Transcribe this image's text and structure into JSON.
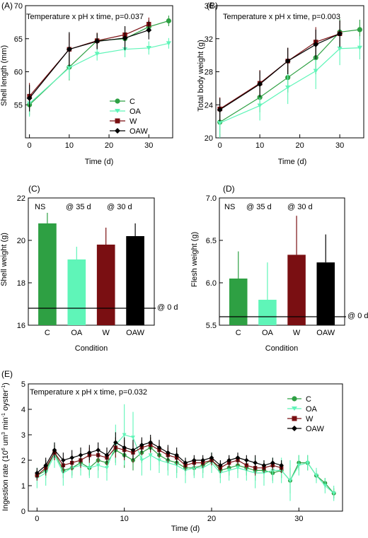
{
  "colors": {
    "C": "#2ea043",
    "OA": "#5ff5b8",
    "W": "#7a0f12",
    "OAW": "#000000"
  },
  "chart_data": [
    {
      "panel": "(A)",
      "type": "line",
      "annotation": "Temperature x pH x time, p=0.037",
      "xlabel": "Time (d)",
      "ylabel": "Shell length (mm)",
      "xlim": [
        -1,
        36
      ],
      "ylim": [
        50,
        70
      ],
      "xticks": [
        "0",
        "10",
        "20",
        "30"
      ],
      "yticks": [
        "55",
        "60",
        "65",
        "70"
      ],
      "legend": [
        "C",
        "OA",
        "W",
        "OAW"
      ],
      "legend_position": "bottom-right",
      "series": [
        {
          "name": "C",
          "x": [
            0,
            10,
            17,
            24,
            30,
            35
          ],
          "y": [
            55.0,
            60.7,
            64.7,
            65.0,
            66.8,
            67.7
          ],
          "err": [
            1.6,
            2.0,
            1.2,
            1.2,
            1.0,
            0.8
          ]
        },
        {
          "name": "OA",
          "x": [
            0,
            10,
            17,
            24,
            30,
            35
          ],
          "y": [
            55.2,
            60.6,
            62.7,
            63.4,
            63.6,
            64.3
          ],
          "err": [
            2.0,
            1.8,
            1.0,
            1.2,
            1.0,
            0.8
          ]
        },
        {
          "name": "W",
          "x": [
            0,
            10,
            17,
            24,
            30
          ],
          "y": [
            56.3,
            63.4,
            64.7,
            65.6,
            67.2
          ],
          "err": [
            2.0,
            2.4,
            1.2,
            1.2,
            1.0
          ]
        },
        {
          "name": "OAW",
          "x": [
            0,
            10,
            17,
            24,
            30
          ],
          "y": [
            56.0,
            63.4,
            64.6,
            65.1,
            66.3
          ],
          "err": [
            2.0,
            2.6,
            1.2,
            1.8,
            1.4
          ]
        }
      ]
    },
    {
      "panel": "(B)",
      "type": "line",
      "annotation": "Temperature x pH x time, p=0.003",
      "xlabel": "Time (d)",
      "ylabel": "Total body weight (g)",
      "xlim": [
        -1,
        36
      ],
      "ylim": [
        20,
        36
      ],
      "xticks": [
        "0",
        "10",
        "20",
        "30"
      ],
      "yticks": [
        "20",
        "24",
        "28",
        "32",
        "36"
      ],
      "series": [
        {
          "name": "C",
          "x": [
            0,
            10,
            17,
            24,
            30,
            35
          ],
          "y": [
            21.9,
            24.9,
            27.3,
            29.7,
            32.8,
            33.1
          ],
          "err": [
            1.5,
            1.8,
            1.8,
            2.0,
            1.6,
            1.2
          ]
        },
        {
          "name": "OA",
          "x": [
            0,
            10,
            17,
            24,
            30,
            35
          ],
          "y": [
            21.8,
            23.9,
            26.1,
            28.1,
            30.8,
            30.9
          ],
          "err": [
            1.8,
            1.8,
            2.0,
            2.2,
            2.0,
            1.4
          ]
        },
        {
          "name": "W",
          "x": [
            0,
            10,
            17,
            24,
            30
          ],
          "y": [
            23.5,
            26.6,
            29.3,
            31.6,
            32.6
          ],
          "err": [
            1.4,
            1.6,
            1.6,
            1.8,
            1.6
          ]
        },
        {
          "name": "OAW",
          "x": [
            0,
            10,
            17,
            24,
            30
          ],
          "y": [
            23.4,
            26.5,
            29.3,
            31.3,
            32.6
          ],
          "err": [
            1.4,
            1.6,
            1.6,
            1.8,
            1.6
          ]
        }
      ]
    },
    {
      "panel": "(C)",
      "type": "bar",
      "xlabel": "Condition",
      "ylabel": "Shell weight (g)",
      "ylim": [
        16,
        22
      ],
      "yticks": [
        "16",
        "18",
        "20",
        "22"
      ],
      "categories": [
        "C",
        "OA",
        "W",
        "OAW"
      ],
      "values": [
        20.8,
        19.1,
        19.8,
        20.2
      ],
      "err": [
        0.5,
        0.6,
        0.8,
        0.6
      ],
      "baseline": 16.8,
      "baseline_label": "@ 0 d",
      "annotations": [
        "NS",
        "@ 35 d",
        "@ 30 d"
      ]
    },
    {
      "panel": "(D)",
      "type": "bar",
      "xlabel": "Condition",
      "ylabel": "Flesh weight (g)",
      "ylim": [
        5.5,
        7.0
      ],
      "yticks": [
        "5.5",
        "6.0",
        "6.5",
        "7.0"
      ],
      "categories": [
        "C",
        "OA",
        "W",
        "OAW"
      ],
      "values": [
        6.05,
        5.8,
        6.33,
        6.24
      ],
      "err": [
        0.32,
        0.44,
        0.46,
        0.33
      ],
      "baseline": 5.6,
      "baseline_label": "@ 0 d",
      "annotations": [
        "NS",
        "@ 35 d",
        "@ 30 d"
      ]
    },
    {
      "panel": "(E)",
      "type": "line",
      "annotation": "Temperature x pH x time, p=0.032",
      "xlabel": "Time (d)",
      "ylabel": "Ingestion rate (10^6 um^3 min^-1 oyster^-1)",
      "xlim": [
        -1,
        35
      ],
      "ylim": [
        0,
        5
      ],
      "xticks": [
        "0",
        "10",
        "20",
        "30"
      ],
      "yticks": [
        "0",
        "1",
        "2",
        "3",
        "4",
        "5"
      ],
      "legend": [
        "C",
        "OA",
        "W",
        "OAW"
      ],
      "legend_position": "top-right",
      "series": [
        {
          "name": "C",
          "x": [
            0,
            1,
            2,
            3,
            4,
            5,
            6,
            7,
            8,
            9,
            10,
            11,
            12,
            13,
            14,
            15,
            16,
            17,
            18,
            19,
            20,
            21,
            22,
            23,
            24,
            25,
            26,
            27,
            28,
            29,
            30,
            31,
            32,
            33,
            34
          ],
          "y": [
            1.4,
            1.6,
            2.3,
            1.6,
            1.7,
            1.9,
            1.7,
            2.0,
            1.9,
            2.4,
            2.2,
            2.0,
            2.3,
            2.5,
            2.2,
            2.0,
            1.9,
            1.7,
            1.7,
            1.8,
            2.0,
            1.6,
            1.7,
            1.8,
            1.7,
            1.6,
            1.6,
            1.5,
            1.6,
            1.2,
            1.9,
            1.9,
            1.4,
            1.1,
            0.7
          ],
          "err": [
            0.2,
            0.3,
            0.3,
            0.3,
            0.3,
            0.3,
            0.3,
            0.4,
            0.4,
            0.5,
            0.5,
            0.4,
            0.4,
            0.4,
            0.4,
            0.4,
            0.4,
            0.3,
            0.3,
            0.3,
            0.3,
            0.3,
            0.3,
            0.3,
            0.3,
            0.4,
            0.3,
            0.3,
            0.3,
            0.5,
            0.3,
            0.3,
            0.2,
            0.2,
            0.2
          ]
        },
        {
          "name": "OA",
          "x": [
            0,
            1,
            2,
            3,
            4,
            5,
            6,
            7,
            8,
            9,
            10,
            11,
            12,
            13,
            14,
            15,
            16,
            17,
            18,
            19,
            20,
            21,
            22,
            23,
            24,
            25,
            26,
            27,
            28,
            29,
            30,
            31,
            32,
            33,
            34
          ],
          "y": [
            1.3,
            1.5,
            2.2,
            1.5,
            1.7,
            1.8,
            1.7,
            1.8,
            1.7,
            2.6,
            3.0,
            2.9,
            2.0,
            2.2,
            2.0,
            1.9,
            1.8,
            1.6,
            1.7,
            1.7,
            1.9,
            1.5,
            1.6,
            1.7,
            1.6,
            1.5,
            1.5,
            1.6,
            1.6,
            1.2,
            1.8,
            1.9,
            1.4,
            1.0,
            0.7
          ],
          "err": [
            0.4,
            0.5,
            0.5,
            0.5,
            0.4,
            0.4,
            0.4,
            0.5,
            0.5,
            0.8,
            1.2,
            1.0,
            0.6,
            0.6,
            0.5,
            0.5,
            0.5,
            0.5,
            0.4,
            0.4,
            0.4,
            0.4,
            0.4,
            0.4,
            0.4,
            0.6,
            0.5,
            0.5,
            0.5,
            0.8,
            0.4,
            0.3,
            0.3,
            0.3,
            0.3
          ]
        },
        {
          "name": "W",
          "x": [
            0,
            1,
            2,
            3,
            4,
            5,
            6,
            7,
            8,
            9,
            10,
            11,
            12,
            13,
            14,
            15,
            16,
            17,
            18,
            19,
            20,
            21,
            22,
            23,
            24,
            25,
            26,
            27,
            28
          ],
          "y": [
            1.4,
            1.7,
            2.3,
            1.8,
            1.9,
            2.0,
            2.2,
            2.2,
            2.1,
            2.5,
            2.4,
            2.3,
            2.5,
            2.6,
            2.4,
            2.2,
            2.1,
            1.8,
            1.9,
            1.9,
            2.0,
            1.7,
            1.9,
            2.0,
            1.8,
            1.7,
            1.7,
            1.8,
            1.7
          ],
          "err": [
            0.2,
            0.3,
            0.3,
            0.3,
            0.3,
            0.3,
            0.3,
            0.3,
            0.3,
            0.4,
            0.4,
            0.4,
            0.3,
            0.3,
            0.3,
            0.3,
            0.3,
            0.2,
            0.2,
            0.2,
            0.2,
            0.2,
            0.2,
            0.2,
            0.2,
            0.3,
            0.2,
            0.2,
            0.2
          ]
        },
        {
          "name": "OAW",
          "x": [
            0,
            1,
            2,
            3,
            4,
            5,
            6,
            7,
            8,
            9,
            10,
            11,
            12,
            13,
            14,
            15,
            16,
            17,
            18,
            19,
            20,
            21,
            22,
            23,
            24,
            25,
            26,
            27,
            28
          ],
          "y": [
            1.5,
            1.8,
            2.4,
            2.0,
            2.1,
            2.2,
            2.3,
            2.4,
            2.2,
            2.7,
            2.5,
            2.4,
            2.6,
            2.7,
            2.5,
            2.3,
            2.2,
            1.9,
            2.0,
            2.0,
            2.1,
            1.8,
            2.0,
            2.1,
            2.0,
            1.9,
            1.8,
            1.9,
            1.8
          ],
          "err": [
            0.2,
            0.3,
            0.3,
            0.3,
            0.3,
            0.3,
            0.3,
            0.3,
            0.3,
            0.4,
            0.4,
            0.4,
            0.3,
            0.3,
            0.3,
            0.3,
            0.3,
            0.2,
            0.2,
            0.2,
            0.2,
            0.2,
            0.2,
            0.2,
            0.2,
            0.3,
            0.2,
            0.2,
            0.2
          ]
        }
      ]
    }
  ]
}
